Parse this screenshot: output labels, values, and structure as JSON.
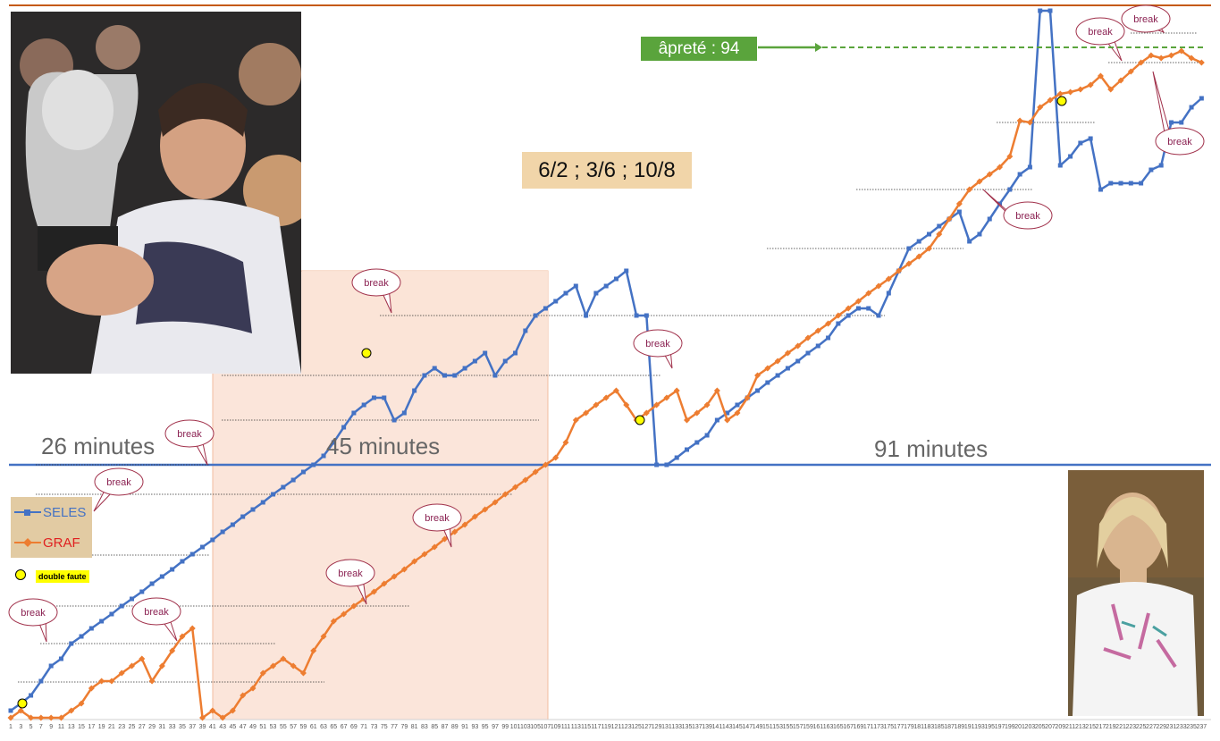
{
  "chart_data": {
    "type": "line",
    "title": "6/2 ; 3/6 ; 10/8",
    "xlabel": "",
    "ylabel": "",
    "x_ticks": [
      "1",
      "3",
      "5",
      "7",
      "9",
      "11",
      "13",
      "15",
      "17",
      "19",
      "21",
      "23",
      "25",
      "27",
      "29",
      "31",
      "33",
      "35",
      "37",
      "39",
      "41",
      "43",
      "45",
      "47",
      "49",
      "51",
      "53",
      "55",
      "57",
      "59",
      "61",
      "63",
      "65",
      "67",
      "69",
      "71",
      "73",
      "75",
      "77",
      "79",
      "81",
      "83",
      "85",
      "87",
      "89",
      "91",
      "93",
      "95",
      "97",
      "99",
      "101",
      "103",
      "105",
      "107",
      "109",
      "111",
      "113",
      "115",
      "117",
      "119",
      "121",
      "123",
      "125",
      "127",
      "129",
      "131",
      "133",
      "135",
      "137",
      "139",
      "141",
      "143",
      "145",
      "147",
      "149",
      "151",
      "153",
      "155",
      "157",
      "159",
      "161",
      "163",
      "165",
      "167",
      "169",
      "171",
      "173",
      "175",
      "177",
      "179",
      "181",
      "183",
      "185",
      "187",
      "189",
      "191",
      "193",
      "195",
      "197",
      "199",
      "201",
      "203",
      "205",
      "207",
      "209",
      "211",
      "213",
      "215",
      "217",
      "219",
      "221",
      "223",
      "225",
      "227",
      "229",
      "231",
      "233",
      "235",
      "237"
    ],
    "x_range": [
      1,
      238
    ],
    "legend": {
      "position": "left-middle"
    },
    "series": [
      {
        "name": "SELES",
        "color": "#4472c4",
        "points": [
          [
            1,
            795
          ],
          [
            3,
            787
          ],
          [
            5,
            778
          ],
          [
            7,
            762
          ],
          [
            9,
            745
          ],
          [
            11,
            737
          ],
          [
            13,
            720
          ],
          [
            15,
            712
          ],
          [
            17,
            703
          ],
          [
            19,
            695
          ],
          [
            21,
            687
          ],
          [
            23,
            678
          ],
          [
            25,
            670
          ],
          [
            27,
            662
          ],
          [
            29,
            653
          ],
          [
            31,
            645
          ],
          [
            33,
            637
          ],
          [
            35,
            628
          ],
          [
            37,
            620
          ],
          [
            39,
            612
          ],
          [
            41,
            604
          ],
          [
            43,
            595
          ],
          [
            45,
            587
          ],
          [
            47,
            578
          ],
          [
            49,
            570
          ],
          [
            51,
            562
          ],
          [
            53,
            553
          ],
          [
            55,
            545
          ],
          [
            57,
            537
          ],
          [
            59,
            528
          ],
          [
            61,
            520
          ],
          [
            63,
            510
          ],
          [
            65,
            495
          ],
          [
            67,
            478
          ],
          [
            69,
            462
          ],
          [
            71,
            453
          ],
          [
            73,
            445
          ],
          [
            75,
            445
          ],
          [
            77,
            470
          ],
          [
            79,
            462
          ],
          [
            81,
            437
          ],
          [
            83,
            420
          ],
          [
            85,
            412
          ],
          [
            87,
            420
          ],
          [
            89,
            420
          ],
          [
            91,
            412
          ],
          [
            93,
            404
          ],
          [
            95,
            395
          ],
          [
            97,
            420
          ],
          [
            99,
            404
          ],
          [
            101,
            395
          ],
          [
            103,
            370
          ],
          [
            105,
            353
          ],
          [
            107,
            345
          ],
          [
            109,
            337
          ],
          [
            111,
            328
          ],
          [
            113,
            320
          ],
          [
            115,
            353
          ],
          [
            117,
            328
          ],
          [
            119,
            320
          ],
          [
            121,
            312
          ],
          [
            123,
            303
          ],
          [
            125,
            353
          ],
          [
            127,
            353
          ],
          [
            129,
            520
          ],
          [
            131,
            520
          ],
          [
            133,
            512
          ],
          [
            135,
            503
          ],
          [
            137,
            495
          ],
          [
            139,
            487
          ],
          [
            141,
            470
          ],
          [
            143,
            462
          ],
          [
            145,
            453
          ],
          [
            147,
            445
          ],
          [
            149,
            437
          ],
          [
            151,
            428
          ],
          [
            153,
            420
          ],
          [
            155,
            412
          ],
          [
            157,
            404
          ],
          [
            159,
            395
          ],
          [
            161,
            387
          ],
          [
            163,
            378
          ],
          [
            165,
            362
          ],
          [
            167,
            353
          ],
          [
            169,
            345
          ],
          [
            171,
            345
          ],
          [
            173,
            353
          ],
          [
            175,
            328
          ],
          [
            177,
            303
          ],
          [
            179,
            278
          ],
          [
            181,
            270
          ],
          [
            183,
            262
          ],
          [
            185,
            253
          ],
          [
            187,
            245
          ],
          [
            189,
            237
          ],
          [
            191,
            270
          ],
          [
            193,
            262
          ],
          [
            195,
            245
          ],
          [
            197,
            228
          ],
          [
            199,
            212
          ],
          [
            201,
            195
          ],
          [
            203,
            187
          ],
          [
            205,
            12
          ],
          [
            207,
            12
          ],
          [
            209,
            185
          ],
          [
            211,
            175
          ],
          [
            213,
            160
          ],
          [
            215,
            155
          ],
          [
            217,
            212
          ],
          [
            219,
            205
          ],
          [
            221,
            205
          ],
          [
            223,
            205
          ],
          [
            225,
            205
          ],
          [
            227,
            190
          ],
          [
            229,
            185
          ],
          [
            231,
            137
          ],
          [
            233,
            137
          ],
          [
            235,
            120
          ],
          [
            237,
            110
          ]
        ]
      },
      {
        "name": "GRAF",
        "color": "#ed7d31",
        "points": [
          [
            1,
            803
          ],
          [
            3,
            795
          ],
          [
            5,
            803
          ],
          [
            7,
            803
          ],
          [
            9,
            803
          ],
          [
            11,
            803
          ],
          [
            13,
            795
          ],
          [
            15,
            787
          ],
          [
            17,
            770
          ],
          [
            19,
            762
          ],
          [
            21,
            762
          ],
          [
            23,
            753
          ],
          [
            25,
            745
          ],
          [
            27,
            737
          ],
          [
            29,
            762
          ],
          [
            31,
            745
          ],
          [
            33,
            728
          ],
          [
            35,
            712
          ],
          [
            37,
            703
          ],
          [
            39,
            803
          ],
          [
            41,
            795
          ],
          [
            43,
            803
          ],
          [
            45,
            795
          ],
          [
            47,
            778
          ],
          [
            49,
            770
          ],
          [
            51,
            753
          ],
          [
            53,
            745
          ],
          [
            55,
            737
          ],
          [
            57,
            745
          ],
          [
            59,
            753
          ],
          [
            61,
            728
          ],
          [
            63,
            712
          ],
          [
            65,
            695
          ],
          [
            67,
            687
          ],
          [
            69,
            678
          ],
          [
            71,
            670
          ],
          [
            73,
            662
          ],
          [
            75,
            653
          ],
          [
            77,
            645
          ],
          [
            79,
            637
          ],
          [
            81,
            628
          ],
          [
            83,
            620
          ],
          [
            85,
            612
          ],
          [
            87,
            603
          ],
          [
            89,
            595
          ],
          [
            91,
            587
          ],
          [
            93,
            578
          ],
          [
            95,
            570
          ],
          [
            97,
            562
          ],
          [
            99,
            553
          ],
          [
            101,
            545
          ],
          [
            103,
            537
          ],
          [
            105,
            528
          ],
          [
            107,
            520
          ],
          [
            109,
            512
          ],
          [
            111,
            495
          ],
          [
            113,
            470
          ],
          [
            115,
            462
          ],
          [
            117,
            453
          ],
          [
            119,
            445
          ],
          [
            121,
            437
          ],
          [
            123,
            453
          ],
          [
            125,
            470
          ],
          [
            127,
            462
          ],
          [
            129,
            453
          ],
          [
            131,
            445
          ],
          [
            133,
            437
          ],
          [
            135,
            470
          ],
          [
            137,
            462
          ],
          [
            139,
            453
          ],
          [
            141,
            437
          ],
          [
            143,
            470
          ],
          [
            145,
            462
          ],
          [
            147,
            445
          ],
          [
            149,
            420
          ],
          [
            151,
            412
          ],
          [
            153,
            404
          ],
          [
            155,
            395
          ],
          [
            157,
            387
          ],
          [
            159,
            378
          ],
          [
            161,
            370
          ],
          [
            163,
            362
          ],
          [
            165,
            353
          ],
          [
            167,
            345
          ],
          [
            169,
            337
          ],
          [
            171,
            328
          ],
          [
            173,
            320
          ],
          [
            175,
            312
          ],
          [
            177,
            303
          ],
          [
            179,
            295
          ],
          [
            181,
            287
          ],
          [
            183,
            278
          ],
          [
            185,
            262
          ],
          [
            187,
            245
          ],
          [
            189,
            228
          ],
          [
            191,
            212
          ],
          [
            193,
            203
          ],
          [
            195,
            195
          ],
          [
            197,
            187
          ],
          [
            199,
            175
          ],
          [
            201,
            135
          ],
          [
            203,
            137
          ],
          [
            205,
            120
          ],
          [
            207,
            112
          ],
          [
            209,
            105
          ],
          [
            211,
            103
          ],
          [
            213,
            100
          ],
          [
            215,
            95
          ],
          [
            217,
            85
          ],
          [
            219,
            100
          ],
          [
            221,
            90
          ],
          [
            223,
            80
          ],
          [
            225,
            70
          ],
          [
            227,
            62
          ],
          [
            229,
            65
          ],
          [
            231,
            62
          ],
          [
            233,
            57
          ],
          [
            235,
            65
          ],
          [
            237,
            70
          ]
        ]
      }
    ],
    "annotations": {
      "break_label": "break",
      "set_durations": [
        "26 minutes",
        "45 minutes",
        "91 minutes"
      ],
      "apret_label": "âpreté : 94",
      "double_fault_label": "double faute"
    },
    "colors": {
      "seles": "#4472c4",
      "graf": "#ed7d31",
      "set2_shade": "#fbe3d6",
      "apret_green": "#5aa43c",
      "score_bg": "#f1d5a9",
      "break_text": "#8b2252"
    }
  },
  "legend": {
    "seles_label": "SELES",
    "graf_label": "GRAF",
    "double_fault_label": "double faute"
  },
  "photos": {
    "seles_icon": "trophy-player-photo",
    "graf_icon": "player-photo"
  }
}
